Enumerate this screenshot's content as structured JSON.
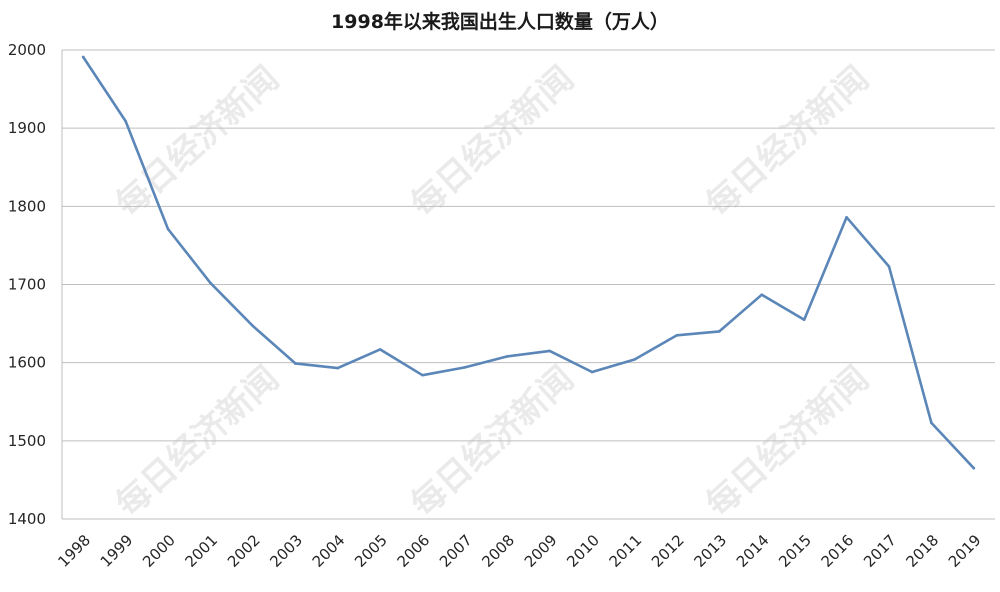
{
  "watermark_text": "每日经济新闻",
  "chart_data": {
    "type": "line",
    "title": "1998年以来我国出生人口数量（万人）",
    "xlabel": "",
    "ylabel": "",
    "x": [
      "1998",
      "1999",
      "2000",
      "2001",
      "2002",
      "2003",
      "2004",
      "2005",
      "2006",
      "2007",
      "2008",
      "2009",
      "2010",
      "2011",
      "2012",
      "2013",
      "2014",
      "2015",
      "2016",
      "2017",
      "2018",
      "2019"
    ],
    "series": [
      {
        "values": [
          1991,
          1909,
          1771,
          1702,
          1647,
          1599,
          1593,
          1617,
          1584,
          1594,
          1608,
          1615,
          1588,
          1604,
          1635,
          1640,
          1687,
          1655,
          1786,
          1723,
          1523,
          1465
        ],
        "color": "#5b86b8"
      }
    ],
    "ylim": [
      1400,
      2000
    ],
    "yticks": [
      1400,
      1500,
      1600,
      1700,
      1800,
      1900,
      2000
    ],
    "grid": true,
    "legend": "none"
  }
}
